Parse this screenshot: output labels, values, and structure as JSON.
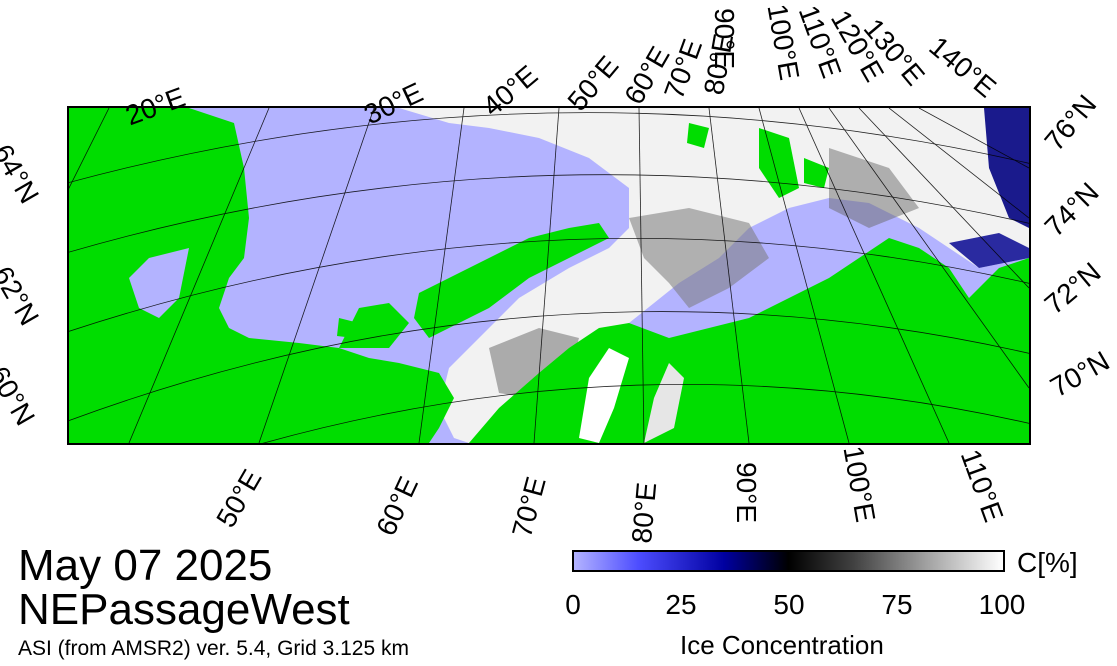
{
  "title": {
    "date": "May 07 2025",
    "region": "NEPassageWest",
    "product": "ASI (from AMSR2) ver. 5.4,  Grid 3.125 km"
  },
  "top_lon_labels": [
    "20°E",
    "30°E",
    "40°E",
    "50°E",
    "60°E",
    "70°E",
    "80°E",
    "90°E",
    "100°E",
    "110°E",
    "120°E",
    "130°E",
    "140°E"
  ],
  "bottom_lon_labels": [
    "50°E",
    "60°E",
    "70°E",
    "80°E",
    "90°E",
    "100°E",
    "110°E"
  ],
  "left_lat_labels": [
    "64°N",
    "62°N",
    "60°N"
  ],
  "right_lat_labels": [
    "76°N",
    "74°N",
    "72°N",
    "70°N"
  ],
  "colorbar": {
    "title": "Ice Concentration",
    "unit": "C[%]",
    "ticks": [
      "0",
      "25",
      "50",
      "75",
      "100"
    ],
    "colors": [
      "#b3b3ff",
      "#0000a0",
      "#000000",
      "#808080",
      "#ffffff"
    ]
  },
  "colors": {
    "land": "#00dd00",
    "open_water": "#b3b3ff",
    "ice": "#ffffff",
    "frame": "#000000"
  }
}
